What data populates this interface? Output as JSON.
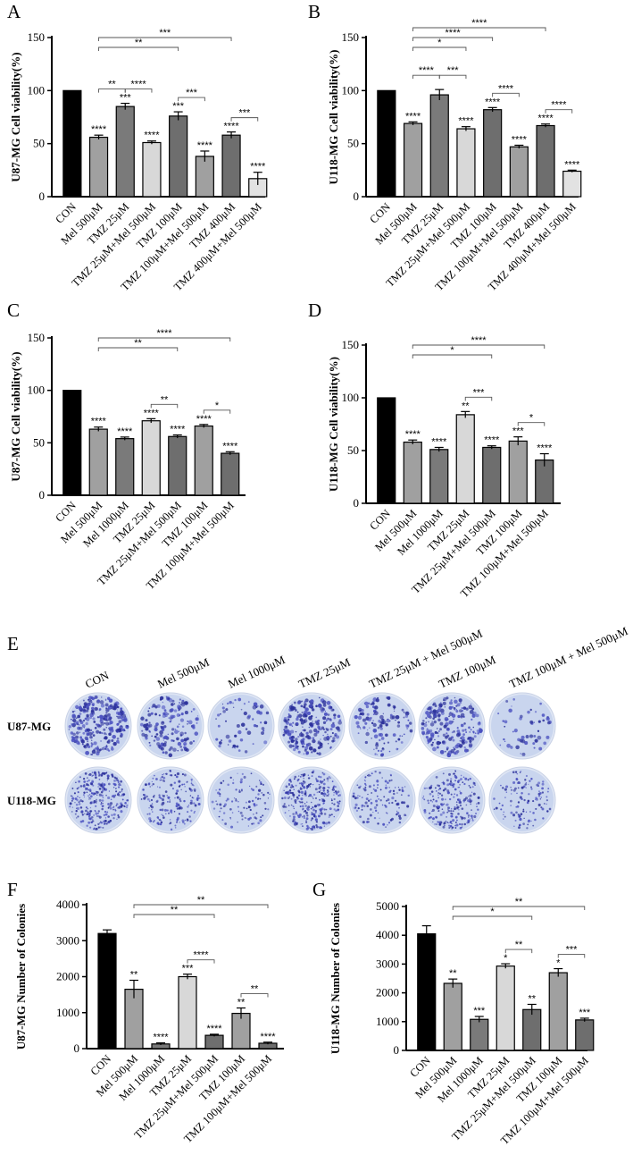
{
  "chart_data": [
    {
      "panel": "A",
      "type": "bar",
      "ylabel": "U87-MG Cell viability(%)",
      "ylim": [
        0,
        150
      ],
      "yticks": [
        0,
        50,
        100,
        150
      ],
      "categories": [
        "CON",
        "Mel 500μM",
        "TMZ 25μM",
        "TMZ 25μM+Mel 500μM",
        "TMZ 100μM",
        "TMZ 100μM+Mel 500μM",
        "TMZ 400μM",
        "TMZ 400μM+Mel 500μM"
      ],
      "values": [
        100,
        56,
        85,
        51,
        76,
        38,
        58,
        17
      ],
      "errors": [
        0,
        2,
        3,
        1.5,
        4,
        5,
        3,
        6
      ],
      "colors": [
        "#000000",
        "#a0a0a0",
        "#7a7a7a",
        "#d8d8d8",
        "#6e6e6e",
        "#a0a0a0",
        "#6e6e6e",
        "#e2e2e2"
      ],
      "bar_labels": [
        "",
        "****",
        "***",
        "****",
        "***",
        "****",
        "****",
        "****"
      ],
      "comparisons": [
        {
          "from": 1,
          "to": 2,
          "label": "**"
        },
        {
          "from": 2,
          "to": 3,
          "label": "****"
        },
        {
          "from": 4,
          "to": 5,
          "label": "***"
        },
        {
          "from": 6,
          "to": 7,
          "label": "***"
        },
        {
          "from": 1,
          "to": 4,
          "label": "**"
        },
        {
          "from": 1,
          "to": 6,
          "label": "***"
        }
      ]
    },
    {
      "panel": "B",
      "type": "bar",
      "ylabel": "U118-MG Cell viability(%)",
      "ylim": [
        0,
        150
      ],
      "yticks": [
        0,
        50,
        100,
        150
      ],
      "categories": [
        "CON",
        "Mel 500μM",
        "TMZ 25μM",
        "TMZ 25μM+Mel 500μM",
        "TMZ 100μM",
        "TMZ 100μM+Mel 500μM",
        "TMZ 400μM",
        "TMZ 400μM+Mel 500μM"
      ],
      "values": [
        100,
        69,
        96,
        64,
        82,
        47,
        67,
        24
      ],
      "errors": [
        0,
        1.5,
        5,
        2,
        2,
        1.5,
        1.5,
        1
      ],
      "colors": [
        "#000000",
        "#a0a0a0",
        "#7a7a7a",
        "#d8d8d8",
        "#6e6e6e",
        "#a0a0a0",
        "#6e6e6e",
        "#e2e2e2"
      ],
      "bar_labels": [
        "",
        "****",
        "",
        "****",
        "****",
        "****",
        "****",
        "****"
      ],
      "comparisons": [
        {
          "from": 2,
          "to": 3,
          "label": "***"
        },
        {
          "from": 4,
          "to": 5,
          "label": "****"
        },
        {
          "from": 6,
          "to": 7,
          "label": "****"
        },
        {
          "from": 1,
          "to": 2,
          "label": "****"
        },
        {
          "from": 1,
          "to": 3,
          "label": "*"
        },
        {
          "from": 1,
          "to": 4,
          "label": "****"
        },
        {
          "from": 1,
          "to": 6,
          "label": "****"
        }
      ]
    },
    {
      "panel": "C",
      "type": "bar",
      "ylabel": "U87-MG Cell viability(%)",
      "ylim": [
        0,
        150
      ],
      "yticks": [
        0,
        50,
        100,
        150
      ],
      "categories": [
        "CON",
        "Mel 500μM",
        "Mel 1000μM",
        "TMZ 25μM",
        "TMZ 25μM+Mel 500μM",
        "TMZ 100μM",
        "TMZ 100μM+Mel 500μM"
      ],
      "values": [
        100,
        63,
        54,
        71,
        56,
        66,
        40
      ],
      "errors": [
        0,
        2,
        1.5,
        2,
        1.5,
        1.5,
        1.5
      ],
      "colors": [
        "#000000",
        "#a0a0a0",
        "#7a7a7a",
        "#d8d8d8",
        "#6e6e6e",
        "#a0a0a0",
        "#6e6e6e"
      ],
      "bar_labels": [
        "",
        "****",
        "****",
        "****",
        "****",
        "****",
        "****"
      ],
      "comparisons": [
        {
          "from": 3,
          "to": 4,
          "label": "**"
        },
        {
          "from": 5,
          "to": 6,
          "label": "*"
        },
        {
          "from": 1,
          "to": 4,
          "label": "**"
        },
        {
          "from": 1,
          "to": 6,
          "label": "****"
        }
      ]
    },
    {
      "panel": "D",
      "type": "bar",
      "ylabel": "U118-MG Cell viability(%)",
      "ylim": [
        0,
        150
      ],
      "yticks": [
        0,
        50,
        100,
        150
      ],
      "categories": [
        "CON",
        "Mel 500μM",
        "Mel 1000μM",
        "TMZ 25μM",
        "TMZ 25μM+Mel 500μM",
        "TMZ 100μM",
        "TMZ 100μM+Mel 500μM"
      ],
      "values": [
        100,
        58,
        51,
        84,
        53,
        59,
        41
      ],
      "errors": [
        0,
        2,
        2,
        3,
        1.5,
        4,
        6
      ],
      "colors": [
        "#000000",
        "#a0a0a0",
        "#7a7a7a",
        "#d8d8d8",
        "#6e6e6e",
        "#a0a0a0",
        "#6e6e6e"
      ],
      "bar_labels": [
        "",
        "****",
        "****",
        "**",
        "****",
        "***",
        "****"
      ],
      "comparisons": [
        {
          "from": 3,
          "to": 4,
          "label": "***"
        },
        {
          "from": 5,
          "to": 6,
          "label": "*"
        },
        {
          "from": 1,
          "to": 4,
          "label": "*"
        },
        {
          "from": 1,
          "to": 6,
          "label": "****"
        }
      ]
    },
    {
      "panel": "F",
      "type": "bar",
      "ylabel": "U87-MG Number of Colonies",
      "ylim": [
        0,
        4000
      ],
      "yticks": [
        0,
        1000,
        2000,
        3000,
        4000
      ],
      "categories": [
        "CON",
        "Mel 500μM",
        "Mel 1000μM",
        "TMZ 25μM",
        "TMZ 25μM+Mel 500μM",
        "TMZ 100μM",
        "TMZ 100μM+Mel 500μM"
      ],
      "values": [
        3200,
        1650,
        130,
        2000,
        370,
        980,
        150
      ],
      "errors": [
        100,
        250,
        30,
        70,
        30,
        150,
        30
      ],
      "colors": [
        "#000000",
        "#a0a0a0",
        "#7a7a7a",
        "#d8d8d8",
        "#6e6e6e",
        "#a0a0a0",
        "#6e6e6e"
      ],
      "bar_labels": [
        "",
        "**",
        "****",
        "***",
        "****",
        "**",
        "****"
      ],
      "comparisons": [
        {
          "from": 3,
          "to": 4,
          "label": "****"
        },
        {
          "from": 5,
          "to": 6,
          "label": "**"
        },
        {
          "from": 1,
          "to": 4,
          "label": "**"
        },
        {
          "from": 1,
          "to": 6,
          "label": "**"
        }
      ]
    },
    {
      "panel": "G",
      "type": "bar",
      "ylabel": "U118-MG Number of Colonies",
      "ylim": [
        0,
        5000
      ],
      "yticks": [
        0,
        1000,
        2000,
        3000,
        4000,
        5000
      ],
      "categories": [
        "CON",
        "Mel 500μM",
        "Mel 1000μM",
        "TMZ 25μM",
        "TMZ 25μM+Mel 500μM",
        "TMZ 100μM",
        "TMZ 100μM+Mel 500μM"
      ],
      "values": [
        4050,
        2330,
        1080,
        2930,
        1420,
        2700,
        1060
      ],
      "errors": [
        280,
        150,
        100,
        80,
        180,
        140,
        60
      ],
      "colors": [
        "#000000",
        "#a0a0a0",
        "#7a7a7a",
        "#d8d8d8",
        "#6e6e6e",
        "#a0a0a0",
        "#6e6e6e"
      ],
      "bar_labels": [
        "",
        "**",
        "***",
        "*",
        "**",
        "*",
        "***"
      ],
      "comparisons": [
        {
          "from": 3,
          "to": 4,
          "label": "**"
        },
        {
          "from": 5,
          "to": 6,
          "label": "***"
        },
        {
          "from": 1,
          "to": 4,
          "label": "*"
        },
        {
          "from": 1,
          "to": 6,
          "label": "**"
        }
      ]
    }
  ],
  "colony_panel": {
    "label": "E",
    "columns": [
      "CON",
      "Mel 500μM",
      "Mel 1000μM",
      "TMZ 25μM",
      "TMZ 25μM + Mel 500μM",
      "TMZ 100μM",
      "TMZ 100μM + Mel 500μM"
    ],
    "rows": [
      {
        "label": "U87-MG",
        "density": [
          0.9,
          0.45,
          0.08,
          0.75,
          0.3,
          0.65,
          0.05
        ]
      },
      {
        "label": "U118-MG",
        "density": [
          0.95,
          0.55,
          0.25,
          0.9,
          0.35,
          0.75,
          0.3
        ]
      }
    ]
  }
}
